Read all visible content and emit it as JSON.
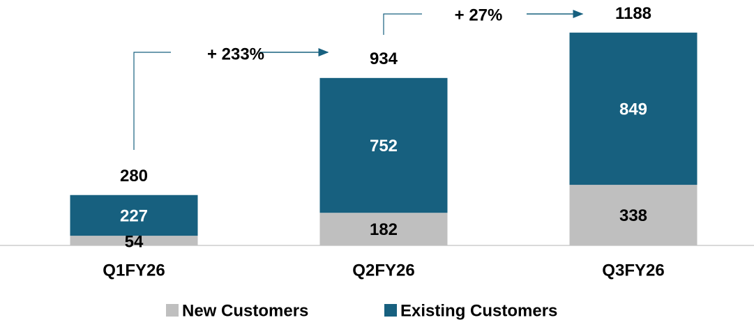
{
  "chart_data": {
    "type": "stacked_bar",
    "categories": [
      "Q1FY26",
      "Q2FY26",
      "Q3FY26"
    ],
    "series": [
      {
        "name": "New Customers",
        "color": "#bfbfbf",
        "values": [
          54,
          182,
          338
        ]
      },
      {
        "name": "Existing Customers",
        "color": "#17607f",
        "values": [
          227,
          752,
          849
        ]
      }
    ],
    "totals": [
      280,
      934,
      1188
    ],
    "annotations": [
      "+ 233%",
      "+ 27%"
    ],
    "ylim": [
      0,
      1190
    ],
    "legend": "bottom"
  }
}
